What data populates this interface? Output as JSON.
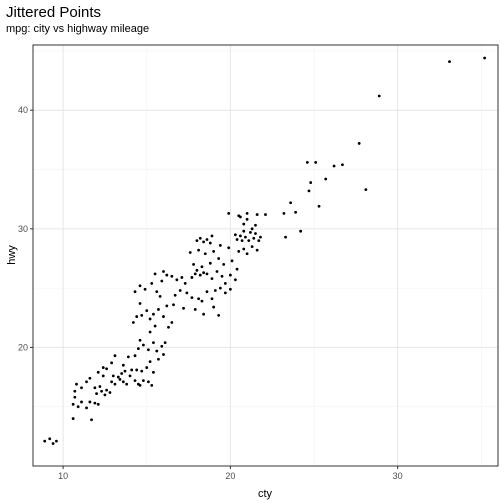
{
  "chart_data": {
    "type": "scatter",
    "title": "Jittered Points",
    "subtitle": "mpg: city vs highway mileage",
    "xlabel": "cty",
    "ylabel": "hwy",
    "xlim": [
      8.2,
      36.0
    ],
    "ylim": [
      10.0,
      45.5
    ],
    "x_ticks": [
      10,
      20,
      30
    ],
    "y_ticks": [
      20,
      30,
      40
    ],
    "grid": true,
    "point_color": "#000000",
    "points": [
      [
        8.9,
        12.1
      ],
      [
        9.2,
        12.3
      ],
      [
        9.4,
        11.9
      ],
      [
        9.6,
        12.1
      ],
      [
        10.6,
        14.0
      ],
      [
        10.6,
        15.2
      ],
      [
        10.7,
        15.8
      ],
      [
        10.9,
        15.0
      ],
      [
        11.1,
        15.4
      ],
      [
        11.4,
        14.9
      ],
      [
        11.6,
        15.4
      ],
      [
        11.7,
        13.9
      ],
      [
        11.9,
        15.3
      ],
      [
        12.1,
        15.2
      ],
      [
        10.7,
        16.3
      ],
      [
        10.8,
        16.9
      ],
      [
        11.1,
        16.6
      ],
      [
        11.4,
        17.1
      ],
      [
        11.6,
        17.4
      ],
      [
        11.9,
        16.6
      ],
      [
        12.1,
        17.9
      ],
      [
        12.4,
        17.6
      ],
      [
        12.3,
        16.3
      ],
      [
        12.6,
        16.4
      ],
      [
        12.9,
        17.1
      ],
      [
        13.1,
        16.9
      ],
      [
        13.4,
        17.3
      ],
      [
        13.6,
        17.1
      ],
      [
        13.8,
        16.9
      ],
      [
        12.4,
        18.3
      ],
      [
        12.6,
        18.2
      ],
      [
        12.9,
        18.7
      ],
      [
        13.1,
        19.3
      ],
      [
        13.3,
        17.5
      ],
      [
        13.6,
        18.5
      ],
      [
        13.9,
        19.2
      ],
      [
        14.1,
        18.1
      ],
      [
        14.3,
        17.2
      ],
      [
        14.6,
        16.8
      ],
      [
        14.8,
        17.2
      ],
      [
        15.1,
        17.1
      ],
      [
        15.3,
        16.8
      ],
      [
        14.5,
        16.9
      ],
      [
        12.0,
        16.1
      ],
      [
        12.2,
        16.7
      ],
      [
        12.5,
        16.0
      ],
      [
        12.8,
        16.2
      ],
      [
        13.0,
        17.6
      ],
      [
        13.5,
        17.8
      ],
      [
        13.7,
        18.0
      ],
      [
        14.0,
        17.6
      ],
      [
        14.4,
        18.1
      ],
      [
        14.7,
        18.0
      ],
      [
        15.0,
        18.3
      ],
      [
        15.2,
        18.8
      ],
      [
        15.4,
        17.9
      ],
      [
        14.3,
        19.3
      ],
      [
        14.5,
        19.9
      ],
      [
        14.8,
        20.2
      ],
      [
        15.1,
        19.8
      ],
      [
        15.4,
        20.4
      ],
      [
        15.6,
        19.7
      ],
      [
        15.9,
        20.1
      ],
      [
        16.1,
        20.4
      ],
      [
        15.7,
        19.0
      ],
      [
        16.0,
        19.4
      ],
      [
        14.6,
        20.6
      ],
      [
        15.2,
        21.3
      ],
      [
        15.5,
        21.8
      ],
      [
        14.2,
        22.1
      ],
      [
        14.4,
        22.6
      ],
      [
        14.7,
        22.7
      ],
      [
        15.0,
        23.1
      ],
      [
        15.2,
        22.4
      ],
      [
        15.4,
        22.8
      ],
      [
        15.7,
        23.2
      ],
      [
        16.0,
        22.6
      ],
      [
        16.3,
        21.7
      ],
      [
        16.5,
        22.1
      ],
      [
        16.2,
        23.5
      ],
      [
        15.8,
        24.3
      ],
      [
        14.6,
        23.7
      ],
      [
        14.3,
        24.7
      ],
      [
        14.6,
        25.2
      ],
      [
        14.9,
        24.9
      ],
      [
        15.3,
        25.4
      ],
      [
        15.6,
        24.7
      ],
      [
        15.9,
        25.6
      ],
      [
        16.2,
        26.1
      ],
      [
        16.5,
        26.0
      ],
      [
        16.8,
        25.7
      ],
      [
        17.1,
        25.9
      ],
      [
        17.3,
        25.4
      ],
      [
        16.0,
        26.4
      ],
      [
        15.5,
        26.2
      ],
      [
        16.7,
        24.4
      ],
      [
        17.0,
        24.8
      ],
      [
        17.4,
        24.6
      ],
      [
        17.7,
        24.2
      ],
      [
        18.1,
        24.1
      ],
      [
        18.3,
        23.9
      ],
      [
        18.6,
        24.7
      ],
      [
        18.9,
        24.1
      ],
      [
        19.1,
        24.8
      ],
      [
        19.4,
        25.0
      ],
      [
        19.7,
        24.6
      ],
      [
        20.0,
        24.9
      ],
      [
        16.6,
        23.6
      ],
      [
        17.2,
        23.3
      ],
      [
        17.9,
        23.2
      ],
      [
        18.4,
        22.8
      ],
      [
        19.0,
        23.4
      ],
      [
        19.3,
        22.7
      ],
      [
        17.7,
        25.9
      ],
      [
        17.9,
        26.2
      ],
      [
        18.0,
        26.5
      ],
      [
        18.2,
        26.1
      ],
      [
        18.4,
        26.3
      ],
      [
        18.6,
        26.2
      ],
      [
        18.9,
        25.8
      ],
      [
        19.2,
        26.4
      ],
      [
        19.5,
        26.0
      ],
      [
        19.7,
        25.4
      ],
      [
        20.0,
        26.1
      ],
      [
        20.3,
        25.7
      ],
      [
        17.8,
        27.0
      ],
      [
        18.3,
        26.8
      ],
      [
        18.8,
        27.1
      ],
      [
        19.3,
        27.5
      ],
      [
        19.6,
        27.0
      ],
      [
        20.1,
        27.3
      ],
      [
        20.4,
        26.6
      ],
      [
        17.6,
        28.0
      ],
      [
        18.1,
        28.2
      ],
      [
        18.5,
        27.9
      ],
      [
        19.0,
        28.1
      ],
      [
        19.4,
        28.6
      ],
      [
        19.9,
        28.4
      ],
      [
        20.5,
        28.1
      ],
      [
        20.8,
        28.3
      ],
      [
        21.0,
        27.9
      ],
      [
        21.3,
        28.5
      ],
      [
        21.6,
        28.2
      ],
      [
        20.3,
        29.5
      ],
      [
        20.7,
        29.0
      ],
      [
        21.2,
        29.7
      ],
      [
        18.0,
        29.0
      ],
      [
        18.2,
        29.2
      ],
      [
        18.6,
        29.1
      ],
      [
        18.8,
        28.8
      ],
      [
        18.4,
        28.9
      ],
      [
        18.9,
        29.4
      ],
      [
        20.4,
        29.1
      ],
      [
        20.6,
        29.4
      ],
      [
        20.9,
        29.3
      ],
      [
        21.1,
        29.0
      ],
      [
        21.4,
        29.2
      ],
      [
        21.5,
        29.6
      ],
      [
        21.8,
        29.3
      ],
      [
        21.7,
        29.0
      ],
      [
        21.3,
        30.0
      ],
      [
        20.8,
        30.4
      ],
      [
        21.5,
        30.3
      ],
      [
        20.6,
        31.0
      ],
      [
        21.0,
        31.3
      ],
      [
        21.6,
        31.2
      ],
      [
        19.9,
        31.3
      ],
      [
        20.5,
        31.1
      ],
      [
        20.8,
        29.8
      ],
      [
        21.0,
        30.8
      ],
      [
        22.1,
        31.2
      ],
      [
        23.2,
        31.3
      ],
      [
        23.6,
        32.2
      ],
      [
        23.9,
        31.4
      ],
      [
        24.2,
        29.8
      ],
      [
        23.3,
        29.3
      ],
      [
        24.7,
        33.2
      ],
      [
        24.8,
        33.9
      ],
      [
        25.3,
        31.9
      ],
      [
        25.7,
        34.2
      ],
      [
        26.2,
        35.3
      ],
      [
        26.7,
        35.4
      ],
      [
        24.6,
        35.6
      ],
      [
        25.1,
        35.6
      ],
      [
        27.7,
        37.2
      ],
      [
        28.1,
        33.3
      ],
      [
        28.9,
        41.2
      ],
      [
        33.1,
        44.1
      ],
      [
        35.2,
        44.4
      ]
    ]
  }
}
